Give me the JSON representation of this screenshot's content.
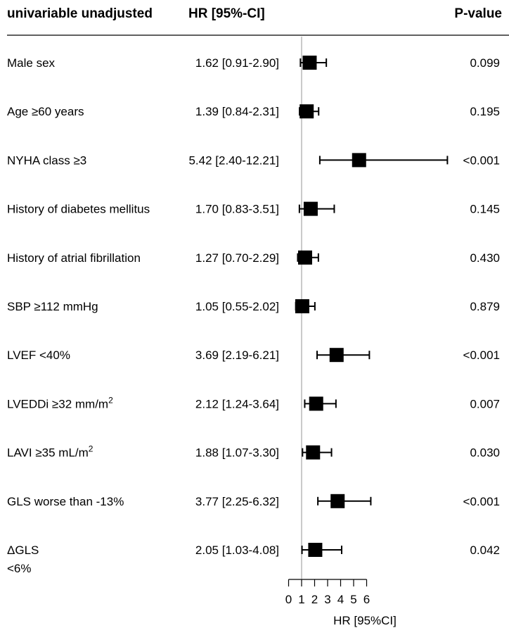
{
  "chart_data": {
    "type": "forest",
    "columns": {
      "label": "univariable unadjusted",
      "hr": "HR [95%-CI]",
      "p": "P-value"
    },
    "rows": [
      {
        "label": "Male sex",
        "hr_text": "1.62 [0.91-2.90]",
        "hr": 1.62,
        "lo": 0.91,
        "hi": 2.9,
        "p": "0.099"
      },
      {
        "label": "Age ≥60 years",
        "hr_text": "1.39 [0.84-2.31]",
        "hr": 1.39,
        "lo": 0.84,
        "hi": 2.31,
        "p": "0.195"
      },
      {
        "label": "NYHA class ≥3",
        "hr_text": "5.42 [2.40-12.21]",
        "hr": 5.42,
        "lo": 2.4,
        "hi": 12.21,
        "p": "<0.001"
      },
      {
        "label": "History of diabetes mellitus",
        "hr_text": "1.70 [0.83-3.51]",
        "hr": 1.7,
        "lo": 0.83,
        "hi": 3.51,
        "p": "0.145"
      },
      {
        "label": "History of atrial fibrillation",
        "hr_text": "1.27 [0.70-2.29]",
        "hr": 1.27,
        "lo": 0.7,
        "hi": 2.29,
        "p": "0.430"
      },
      {
        "label": "SBP ≥112 mmHg",
        "hr_text": "1.05 [0.55-2.02]",
        "hr": 1.05,
        "lo": 0.55,
        "hi": 2.02,
        "p": "0.879"
      },
      {
        "label": "LVEF <40%",
        "hr_text": "3.69 [2.19-6.21]",
        "hr": 3.69,
        "lo": 2.19,
        "hi": 6.21,
        "p": "<0.001"
      },
      {
        "label": "LVEDDi ≥32 mm/m",
        "label_sup": "2",
        "hr_text": "2.12 [1.24-3.64]",
        "hr": 2.12,
        "lo": 1.24,
        "hi": 3.64,
        "p": "0.007"
      },
      {
        "label": "LAVI ≥35 mL/m",
        "label_sup": "2",
        "hr_text": "1.88 [1.07-3.30]",
        "hr": 1.88,
        "lo": 1.07,
        "hi": 3.3,
        "p": "0.030"
      },
      {
        "label": "GLS worse than -13%",
        "hr_text": "3.77 [2.25-6.32]",
        "hr": 3.77,
        "lo": 2.25,
        "hi": 6.32,
        "p": "<0.001"
      },
      {
        "label": "ΔGLS",
        "label_line2": "<6%",
        "hr_text": "2.05 [1.03-4.08]",
        "hr": 2.05,
        "lo": 1.03,
        "hi": 4.08,
        "p": "0.042"
      }
    ],
    "x_axis": {
      "label": "HR [95%CI]",
      "ticks": [
        "0",
        "1",
        "2",
        "3",
        "4",
        "5",
        "6"
      ],
      "range": [
        0,
        6
      ],
      "reference_line": 1
    }
  }
}
